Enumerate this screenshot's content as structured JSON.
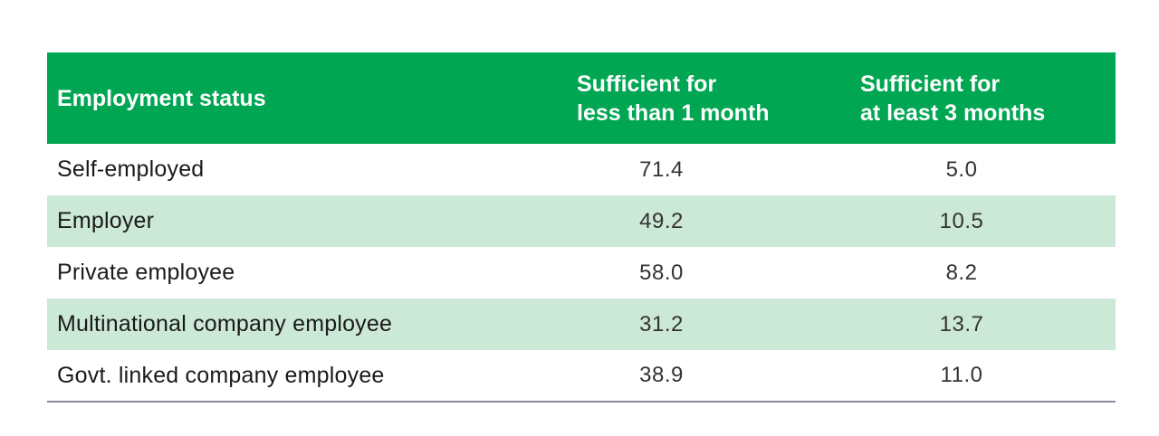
{
  "table": {
    "headers": {
      "col1": "Employment status",
      "col2_line1": "Sufficient for",
      "col2_line2": "less than 1 month",
      "col3_line1": "Sufficient for",
      "col3_line2": "at least 3 months"
    },
    "rows": [
      {
        "status": "Self-employed",
        "less_than_1_month": "71.4",
        "at_least_3_months": "5.0"
      },
      {
        "status": "Employer",
        "less_than_1_month": "49.2",
        "at_least_3_months": "10.5"
      },
      {
        "status": "Private employee",
        "less_than_1_month": "58.0",
        "at_least_3_months": "8.2"
      },
      {
        "status": "Multinational company employee",
        "less_than_1_month": "31.2",
        "at_least_3_months": "13.7"
      },
      {
        "status": "Govt. linked company employee",
        "less_than_1_month": "38.9",
        "at_least_3_months": "11.0"
      }
    ]
  },
  "colors": {
    "header_bg": "#00a651",
    "row_shade": "#cce8d6",
    "rule": "#8a8d99"
  }
}
